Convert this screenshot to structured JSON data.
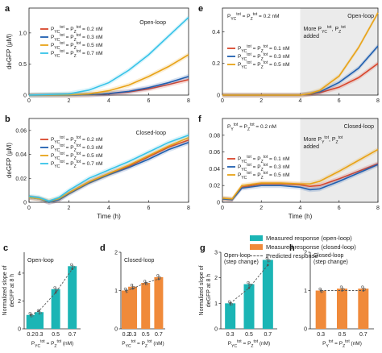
{
  "colors": {
    "c02": "#d9452b",
    "c03": "#1f5fb0",
    "c05": "#e8a317",
    "c07": "#36c3e8",
    "open_bar": "#1bb5b5",
    "closed_bar": "#f08a3a"
  },
  "chart_data": [
    {
      "id": "a",
      "panel_label": "a",
      "type": "line",
      "ylabel": "deGFP (μM)",
      "xlim": [
        0,
        8
      ],
      "ylim": [
        0,
        1.4
      ],
      "yticks": [
        "0",
        "0.5",
        "1.0"
      ],
      "xticks": [
        "0",
        "2",
        "4",
        "6",
        "8"
      ],
      "annotation": "Open-loop",
      "series": [
        {
          "name": "P_YC^tot = P_Z^tot = 0.2 nM",
          "color_key": "c02",
          "x": [
            0,
            2,
            3,
            4,
            5,
            6,
            7,
            8
          ],
          "y": [
            0,
            0,
            0.005,
            0.02,
            0.05,
            0.1,
            0.17,
            0.25
          ]
        },
        {
          "name": "P_YC^tot = P_Z^tot = 0.3 nM",
          "color_key": "c03",
          "x": [
            0,
            2,
            3,
            4,
            5,
            6,
            7,
            8
          ],
          "y": [
            0,
            0,
            0.005,
            0.025,
            0.06,
            0.12,
            0.2,
            0.3
          ]
        },
        {
          "name": "P_YC^tot = P_Z^tot = 0.5 nM",
          "color_key": "c05",
          "x": [
            0,
            2,
            3,
            4,
            5,
            6,
            7,
            8
          ],
          "y": [
            0,
            0.005,
            0.02,
            0.07,
            0.16,
            0.3,
            0.46,
            0.65
          ]
        },
        {
          "name": "P_YC^tot = P_Z^tot = 0.7 nM",
          "color_key": "c07",
          "x": [
            0,
            2,
            3,
            4,
            5,
            6,
            7,
            8
          ],
          "y": [
            0,
            0.02,
            0.08,
            0.2,
            0.4,
            0.65,
            0.95,
            1.25
          ]
        }
      ]
    },
    {
      "id": "b",
      "panel_label": "b",
      "type": "line",
      "ylabel": "deGFP (μM)",
      "xlabel": "Time (h)",
      "xlim": [
        0,
        8
      ],
      "ylim": [
        0,
        0.07
      ],
      "yticks": [
        "0",
        "0.02",
        "0.04",
        "0.06"
      ],
      "xticks": [
        "0",
        "2",
        "4",
        "6",
        "8"
      ],
      "annotation": "Closed-loop",
      "series": [
        {
          "name": "P_YC^tot = P_Z^tot = 0.2 nM",
          "color_key": "c02",
          "x": [
            0,
            0.5,
            1,
            1.5,
            2,
            3,
            4,
            5,
            6,
            7,
            8
          ],
          "y": [
            0.004,
            0.003,
            0,
            0.002,
            0.008,
            0.017,
            0.024,
            0.03,
            0.038,
            0.046,
            0.052
          ]
        },
        {
          "name": "P_YC^tot = P_Z^tot = 0.3 nM",
          "color_key": "c03",
          "x": [
            0,
            0.5,
            1,
            1.5,
            2,
            3,
            4,
            5,
            6,
            7,
            8
          ],
          "y": [
            0.004,
            0.003,
            0,
            0.002,
            0.007,
            0.016,
            0.023,
            0.029,
            0.036,
            0.044,
            0.05
          ]
        },
        {
          "name": "P_YC^tot = P_Z^tot = 0.5 nM",
          "color_key": "c05",
          "x": [
            0,
            0.5,
            1,
            1.5,
            2,
            3,
            4,
            5,
            6,
            7,
            8
          ],
          "y": [
            0.004,
            0.003,
            0.001,
            0.003,
            0.008,
            0.017,
            0.024,
            0.031,
            0.039,
            0.047,
            0.054
          ]
        },
        {
          "name": "P_YC^tot = P_Z^tot = 0.7 nM",
          "color_key": "c07",
          "x": [
            0,
            0.5,
            1,
            1.5,
            2,
            3,
            4,
            5,
            6,
            7,
            8
          ],
          "y": [
            0.005,
            0.004,
            0.001,
            0.004,
            0.01,
            0.02,
            0.027,
            0.034,
            0.042,
            0.05,
            0.056
          ]
        }
      ]
    },
    {
      "id": "e",
      "panel_label": "e",
      "type": "line",
      "xlim": [
        0,
        8
      ],
      "ylim": [
        0,
        0.55
      ],
      "yticks": [
        "0",
        "0.2",
        "0.4"
      ],
      "xticks": [
        "0",
        "2",
        "4",
        "6",
        "8"
      ],
      "title": "P_YC^tot = P_Z^tot = 0.2 nM",
      "annotation": "Open-loop",
      "annotation2": "More P_YC^tot, P_Z^tot added",
      "series": [
        {
          "name": "P_YC^tot = P_Z^tot = 0.1 nM",
          "color_key": "c02",
          "x": [
            0,
            2,
            4,
            4.5,
            5,
            6,
            7,
            8
          ],
          "y": [
            0,
            0,
            0,
            0.005,
            0.015,
            0.05,
            0.11,
            0.2
          ]
        },
        {
          "name": "P_YC^tot = P_Z^tot = 0.3 nM",
          "color_key": "c03",
          "x": [
            0,
            2,
            4,
            4.5,
            5,
            6,
            7,
            8
          ],
          "y": [
            0,
            0,
            0,
            0.008,
            0.02,
            0.08,
            0.17,
            0.31
          ]
        },
        {
          "name": "P_YC^tot = P_Z^tot = 0.5 nM",
          "color_key": "c05",
          "x": [
            0,
            2,
            4,
            4.5,
            5,
            6,
            7,
            8
          ],
          "y": [
            0,
            0,
            0,
            0.01,
            0.03,
            0.12,
            0.3,
            0.52
          ]
        }
      ]
    },
    {
      "id": "f",
      "panel_label": "f",
      "type": "line",
      "xlabel": "Time (h)",
      "xlim": [
        0,
        8
      ],
      "ylim": [
        0,
        0.1
      ],
      "yticks": [
        "0",
        "0.02",
        "0.04",
        "0.06",
        "0.08"
      ],
      "xticks": [
        "0",
        "2",
        "4",
        "6",
        "8"
      ],
      "title": "P_Y^tot = P_Z^tot = 0.2 nM",
      "annotation": "Closed-loop",
      "annotation2": "More P_Y^tot, P_Z^tot added",
      "series": [
        {
          "name": "P_YC^tot = P_Z^tot = 0.1 nM",
          "color_key": "c02",
          "x": [
            0,
            0.5,
            1,
            2,
            3,
            4,
            4.5,
            5,
            6,
            7,
            8
          ],
          "y": [
            0.004,
            0.003,
            0.018,
            0.022,
            0.022,
            0.021,
            0.019,
            0.02,
            0.028,
            0.037,
            0.046
          ]
        },
        {
          "name": "P_YC^tot = P_Z^tot = 0.3 nM",
          "color_key": "c03",
          "x": [
            0,
            0.5,
            1,
            2,
            3,
            4,
            4.5,
            5,
            6,
            7,
            8
          ],
          "y": [
            0.004,
            0.003,
            0.017,
            0.02,
            0.02,
            0.018,
            0.015,
            0.016,
            0.025,
            0.035,
            0.045
          ]
        },
        {
          "name": "P_YC^tot = P_Z^tot = 0.5 nM",
          "color_key": "c05",
          "x": [
            0,
            0.5,
            1,
            2,
            3,
            4,
            4.5,
            5,
            6,
            7,
            8
          ],
          "y": [
            0.005,
            0.004,
            0.02,
            0.023,
            0.023,
            0.022,
            0.022,
            0.025,
            0.037,
            0.05,
            0.063
          ]
        }
      ]
    },
    {
      "id": "c",
      "panel_label": "c",
      "type": "bar",
      "ylabel": "Normalized slope of deGFP at 8 h",
      "ylim": [
        0,
        5.5
      ],
      "yticks": [
        "0",
        "2",
        "4"
      ],
      "categories": [
        "0.2",
        "0.3",
        "0.5",
        "0.7"
      ],
      "x_positions": [
        0.2,
        0.3,
        0.5,
        0.7
      ],
      "values": [
        1.0,
        1.2,
        2.85,
        4.5
      ],
      "predicted": [
        1.0,
        1.3,
        2.6,
        4.3
      ],
      "color_key": "open_bar",
      "annotation": "Open-loop",
      "xlabel": "P_YC^tot = P_Z^tot (nM)"
    },
    {
      "id": "d",
      "panel_label": "d",
      "type": "bar",
      "ylim": [
        0,
        2
      ],
      "yticks": [
        "0",
        "1",
        "2"
      ],
      "categories": [
        "0.2",
        "0.3",
        "0.5",
        "0.7"
      ],
      "x_positions": [
        0.2,
        0.3,
        0.5,
        0.7
      ],
      "values": [
        1.0,
        1.1,
        1.2,
        1.35
      ],
      "predicted": [
        1.0,
        1.05,
        1.2,
        1.3
      ],
      "color_key": "closed_bar",
      "annotation": "Closed-loop",
      "xlabel": "P_YC^tot = P_Z^tot (nM)"
    },
    {
      "id": "g",
      "panel_label": "g",
      "type": "bar",
      "ylabel": "Normalized slope of deGFP at 8 h",
      "ylim": [
        0,
        3
      ],
      "yticks": [
        "0",
        "1",
        "2",
        "3"
      ],
      "categories": [
        "0.3",
        "0.5",
        "0.7"
      ],
      "x_positions": [
        0.3,
        0.5,
        0.7
      ],
      "values": [
        1.0,
        1.75,
        2.7
      ],
      "predicted": [
        1.0,
        1.6,
        2.5
      ],
      "color_key": "open_bar",
      "annotation": "Open-loop (step change)",
      "xlabel": "P_YC^tot = P_Z^tot (nM)"
    },
    {
      "id": "h",
      "panel_label": "h",
      "type": "bar",
      "ylim": [
        0,
        2
      ],
      "yticks": [
        "0",
        "1",
        "2"
      ],
      "categories": [
        "0.3",
        "0.5",
        "0.7"
      ],
      "x_positions": [
        0.3,
        0.5,
        0.7
      ],
      "values": [
        1.0,
        1.05,
        1.05
      ],
      "predicted": [
        1.0,
        1.0,
        1.0
      ],
      "color_key": "closed_bar",
      "annotation": "Closed-loop (step change)",
      "xlabel": "P_Y^tot = P_Z^tot (nM)"
    }
  ],
  "legend": {
    "items": [
      {
        "label": "Measured response (open-loop)",
        "color_key": "open_bar"
      },
      {
        "label": "Measured response (closed-loop)",
        "color_key": "closed_bar"
      },
      {
        "label": "Predicted response",
        "style": "dashed"
      }
    ]
  }
}
